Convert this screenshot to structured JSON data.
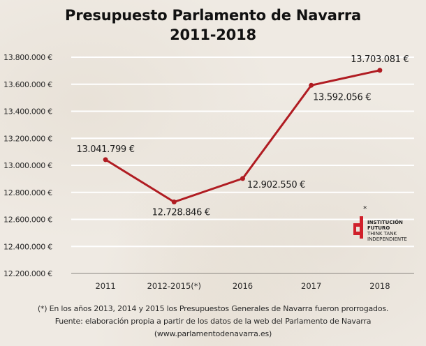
{
  "chart_data": {
    "type": "line",
    "title": "Presupuesto Parlamento de Navarra",
    "subtitle": "2011-2018",
    "xlabel": "",
    "ylabel": "",
    "categories": [
      "2011",
      "2012-2015(*)",
      "2016",
      "2017",
      "2018"
    ],
    "series": [
      {
        "name": "Presupuesto",
        "values": [
          13041799,
          12728846,
          12902550,
          13592056,
          13703081
        ],
        "labels": [
          "13.041.799 €",
          "12.728.846 €",
          "12.902.550 €",
          "13.592.056 €",
          "13.703.081 €"
        ],
        "color": "#b01c22"
      }
    ],
    "ylim": [
      12200000,
      13800000
    ],
    "yticks": [
      12200000,
      12400000,
      12600000,
      12800000,
      13000000,
      13200000,
      13400000,
      13600000,
      13800000
    ],
    "ytick_labels": [
      "12.200.000 €",
      "12.400.000 €",
      "12.600.000 €",
      "12.800.000 €",
      "13.000.000 €",
      "13.200.000 €",
      "13.400.000 €",
      "13.600.000 €",
      "13.800.000 €"
    ],
    "grid": true,
    "legend": "none"
  },
  "footnotes": [
    "(*) En los años 2013, 2014 y 2015 los Presupuestos Generales de Navarra fueron prorrogados.",
    "Fuente: elaboración propia a partir de los datos de la web del Parlamento de Navarra",
    "(www.parlamentodenavarra.es)"
  ],
  "logo": {
    "star": "*",
    "lines": [
      "INSTITUCIÓN",
      "FUTURO",
      "THINK TANK",
      "INDEPENDIENTE"
    ],
    "color": "#d0202a"
  },
  "colors": {
    "background": "#efeae3",
    "gridline": "#ffffff",
    "axis": "#8a8580",
    "line": "#b01c22"
  }
}
